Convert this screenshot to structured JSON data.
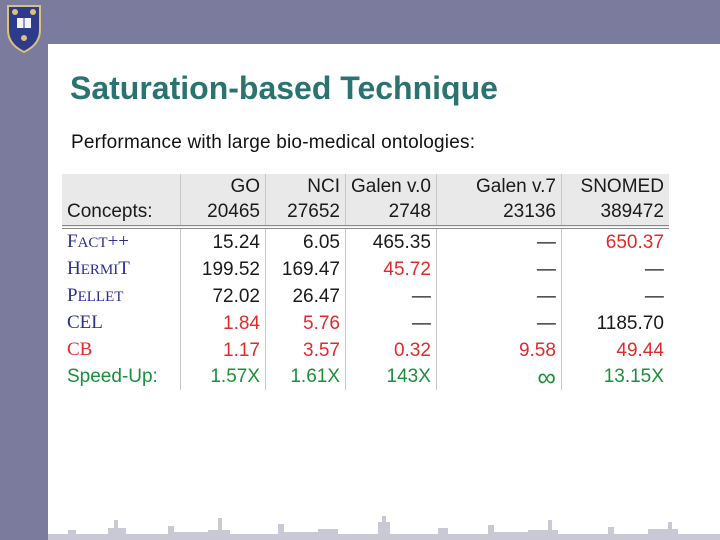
{
  "slide": {
    "title": "Saturation-based Technique",
    "subtitle": "Performance with large bio-medical ontologies:"
  },
  "table": {
    "columns": [
      "",
      "GO",
      "NCI",
      "Galen v.0",
      "Galen v.7",
      "SNOMED"
    ],
    "concepts": {
      "label": "Concepts:",
      "values": [
        "20465",
        "27652",
        "2748",
        "23136",
        "389472"
      ]
    },
    "reasoners": [
      {
        "name_parts": [
          "F",
          "ACT",
          "++"
        ],
        "values": [
          "15.24",
          "6.05",
          "465.35",
          "—",
          "650.37"
        ]
      },
      {
        "name_parts": [
          "H",
          "ERMI",
          "T"
        ],
        "values": [
          "199.52",
          "169.47",
          "45.72",
          "—",
          "—"
        ]
      },
      {
        "name_parts": [
          "P",
          "ELLET",
          ""
        ],
        "values": [
          "72.02",
          "26.47",
          "—",
          "—",
          "—"
        ]
      },
      {
        "name_parts": [
          "CEL",
          "",
          ""
        ],
        "values": [
          "1.84",
          "5.76",
          "—",
          "—",
          "1185.70"
        ]
      },
      {
        "name_parts": [
          "CB",
          "",
          ""
        ],
        "values": [
          "1.17",
          "3.57",
          "0.32",
          "9.58",
          "49.44"
        ]
      }
    ],
    "speedup": {
      "label": "Speed-Up:",
      "values": [
        "1.57X",
        "1.61X",
        "143X",
        "∞",
        "13.15X"
      ]
    }
  },
  "colors": {
    "title": "#2b7370",
    "band": "#7b7b9e",
    "highlight_red": "#e32a2a",
    "speedup_green": "#1b8f3a",
    "reasoner_blue": "#2a2f8a"
  }
}
